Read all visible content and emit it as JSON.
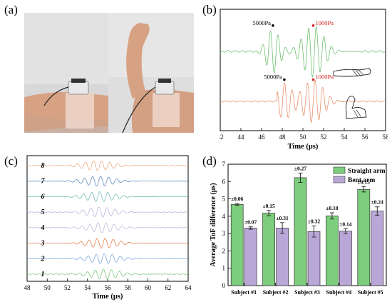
{
  "panels": {
    "a": {
      "label": "(a)"
    },
    "b": {
      "label": "(b)"
    },
    "c": {
      "label": "(c)"
    },
    "d": {
      "label": "(d)"
    }
  },
  "colors": {
    "green": "#5cb85c",
    "orange": "#e8825a",
    "red": "#d62020",
    "bar_green": "#7ccd7c",
    "bar_purple": "#b9a7d8",
    "skin": "#d9a98c",
    "wall": "#dcdcdc"
  },
  "chart_data": [
    {
      "id": "b",
      "type": "line",
      "title": "",
      "xlabel": "Time (μs)",
      "ylabel": "",
      "xlim": [
        42,
        58
      ],
      "xticks": [
        42,
        44,
        46,
        48,
        50,
        52,
        54,
        56,
        58
      ],
      "series": [
        {
          "color": "#5cb85c",
          "signal_start": 45.5,
          "signal_end": 55.5,
          "markers": [
            {
              "label": "5000Pa",
              "x": 47.1,
              "color": "#000000"
            },
            {
              "label": "1000Pa",
              "x": 51.0,
              "color": "#d62020"
            }
          ]
        },
        {
          "color": "#e8825a",
          "signal_start": 47.5,
          "signal_end": 54.0,
          "markers": [
            {
              "label": "5000Pa",
              "x": 48.2,
              "color": "#000000"
            },
            {
              "label": "1000Pa",
              "x": 51.0,
              "color": "#d62020"
            }
          ]
        }
      ]
    },
    {
      "id": "c",
      "type": "line",
      "title": "",
      "xlabel": "Time (μs)",
      "ylabel": "",
      "xlim": [
        48,
        64
      ],
      "xticks": [
        48,
        50,
        52,
        54,
        56,
        58,
        60,
        62,
        64
      ],
      "series_labels": [
        "8",
        "7",
        "6",
        "5",
        "4",
        "3",
        "2",
        "1"
      ],
      "series_colors": [
        "#e8a070",
        "#4a7fb5",
        "#5fb7a8",
        "#b8a8d8",
        "#b0b8d0",
        "#e0703a",
        "#6a9ed8",
        "#6cc06c"
      ],
      "signal_start": 52.0,
      "signal_end": 61.0
    },
    {
      "id": "d",
      "type": "bar",
      "title": "",
      "xlabel": "",
      "ylabel": "Average ToF difference (μs)",
      "ylim": [
        0,
        7
      ],
      "yticks": [
        0,
        1,
        2,
        3,
        4,
        5,
        6,
        7
      ],
      "categories": [
        "Subject #1",
        "Subject #2",
        "Subject #3",
        "Subject #4",
        "Subject #5"
      ],
      "series": [
        {
          "name": "Straight arm",
          "values": [
            4.68,
            4.18,
            6.22,
            4.02,
            5.55
          ],
          "errors": [
            0.06,
            0.15,
            0.27,
            0.18,
            0.15
          ],
          "error_labels": [
            "±0.06",
            "±0.15",
            "±0.27",
            "±0.18",
            "±0.15"
          ],
          "color": "#7ccd7c"
        },
        {
          "name": "Bent arm",
          "values": [
            3.32,
            3.32,
            3.12,
            3.14,
            4.3
          ],
          "errors": [
            0.07,
            0.31,
            0.32,
            0.14,
            0.24
          ],
          "error_labels": [
            "±0.07",
            "±0.31",
            "±0.32",
            "±0.14",
            "±0.24"
          ],
          "color": "#b9a7d8"
        }
      ],
      "legend_position": "top-right"
    }
  ]
}
